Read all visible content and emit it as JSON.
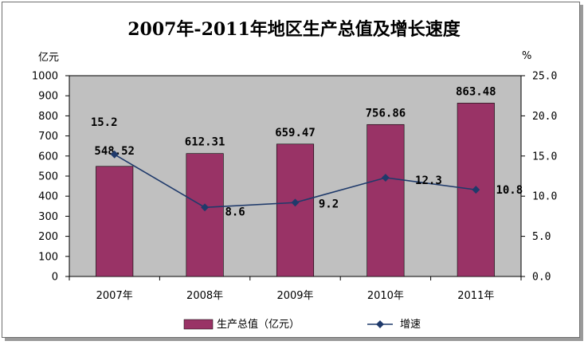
{
  "chart_data": {
    "type": "bar",
    "title": "2007年-2011年地区生产总值及增长速度",
    "categories": [
      "2007年",
      "2008年",
      "2009年",
      "2010年",
      "2011年"
    ],
    "ylabel": "亿元",
    "y2label": "%",
    "ylim": [
      0,
      1000
    ],
    "y2lim": [
      0,
      25
    ],
    "yticks": [
      "0",
      "100",
      "200",
      "300",
      "400",
      "500",
      "600",
      "700",
      "800",
      "900",
      "1000"
    ],
    "y2ticks": [
      "0.0",
      "5.0",
      "10.0",
      "15.0",
      "20.0",
      "25.0"
    ],
    "series": [
      {
        "name": "生产总值（亿元）",
        "type": "bar",
        "axis": "left",
        "values": [
          548.52,
          612.31,
          659.47,
          756.86,
          863.48
        ],
        "labels": [
          "548.52",
          "612.31",
          "659.47",
          "756.86",
          "863.48"
        ]
      },
      {
        "name": "增速",
        "type": "line",
        "axis": "right",
        "values": [
          15.2,
          8.6,
          9.2,
          12.3,
          10.8
        ],
        "labels": [
          "15.2",
          "8.6",
          "9.2",
          "12.3",
          "10.8"
        ]
      }
    ],
    "grid": false,
    "legend_position": "bottom",
    "colors": {
      "bar": "#993366",
      "line": "#1f3a6b",
      "plot_bg": "#c0c0c0"
    }
  }
}
